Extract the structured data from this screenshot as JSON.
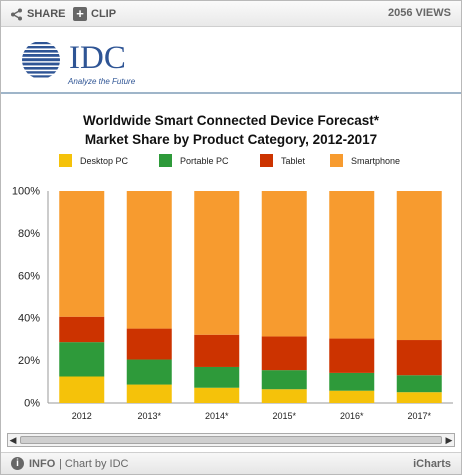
{
  "toolbar": {
    "share_label": "SHARE",
    "clip_label": "CLIP",
    "views": "2056 VIEWS"
  },
  "logo": {
    "text": "IDC",
    "tagline": "Analyze the Future"
  },
  "footer": {
    "info_label": "INFO",
    "chart_by_label": "| Chart by IDC",
    "brand": "iCharts"
  },
  "colors": {
    "desktop": "#f5c20a",
    "portable": "#2e9a3a",
    "tablet": "#cc3300",
    "smartphone": "#f79b2f"
  },
  "chart_data": {
    "type": "bar",
    "stacked": true,
    "title": "Worldwide Smart Connected Device Forecast*",
    "subtitle": "Market Share by Product Category, 2012-2017",
    "categories": [
      "2012",
      "2013*",
      "2014*",
      "2015*",
      "2016*",
      "2017*"
    ],
    "series": [
      {
        "name": "Desktop PC",
        "values": [
          12.5,
          8.7,
          7.2,
          6.5,
          5.8,
          5.1
        ]
      },
      {
        "name": "Portable PC",
        "values": [
          16.2,
          11.8,
          9.8,
          9.0,
          8.4,
          8.0
        ]
      },
      {
        "name": "Tablet",
        "values": [
          12.0,
          14.6,
          15.2,
          15.9,
          16.2,
          16.6
        ]
      },
      {
        "name": "Smartphone",
        "values": [
          59.3,
          64.9,
          67.8,
          68.6,
          69.6,
          70.3
        ]
      }
    ],
    "ylim": [
      0,
      100
    ],
    "yticks": [
      "0%",
      "20%",
      "40%",
      "60%",
      "80%",
      "100%"
    ],
    "legend_position": "top",
    "grid": false
  }
}
